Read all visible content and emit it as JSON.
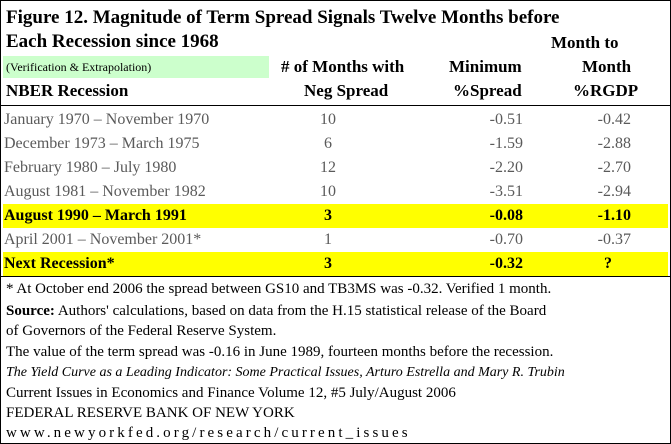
{
  "title": {
    "line1": "Figure 12.  Magnitude of Term Spread Signals Twelve Months before",
    "line2": "Each Recession since 1968"
  },
  "note": "(Verification & Extrapolation)",
  "headers": {
    "col0": "NBER Recession",
    "col1_line1": "# of Months with",
    "col1_line2": "Neg Spread",
    "col2_line1": "Minimum",
    "col2_line2": "%Spread",
    "col3_line0": "Month to",
    "col3_line1": "Month",
    "col3_line2": "%RGDP"
  },
  "rows": [
    {
      "recession": "January 1970 – November 1970",
      "months": "10",
      "spread": "-0.51",
      "rgdp": "-0.42",
      "highlight": false
    },
    {
      "recession": "December 1973 – March 1975",
      "months": "6",
      "spread": "-1.59",
      "rgdp": "-2.88",
      "highlight": false
    },
    {
      "recession": "February 1980 – July 1980",
      "months": "12",
      "spread": "-2.20",
      "rgdp": "-2.70",
      "highlight": false
    },
    {
      "recession": "August 1981 – November 1982",
      "months": "10",
      "spread": "-3.51",
      "rgdp": "-2.94",
      "highlight": false
    },
    {
      "recession": "August 1990 – March 1991",
      "months": "3",
      "spread": "-0.08",
      "rgdp": "-1.10",
      "highlight": true
    },
    {
      "recession": "April 2001 – November 2001*",
      "months": "1",
      "spread": "-0.70",
      "rgdp": "-0.37",
      "highlight": false
    },
    {
      "recession": "Next Recession*",
      "months": "3",
      "spread": "-0.32",
      "rgdp": "?",
      "highlight": true
    }
  ],
  "footnotes": {
    "star": " * At October end 2006 the spread between GS10 and TB3MS was -0.32.  Verified 1 month.",
    "source_label": "Source:",
    "source_line1": "  Authors' calculations, based on data from the H.15 statistical release of the Board",
    "source_line2": "of  Governors of the Federal Reserve System.",
    "term_spread": "The value of the term spread was -0.16 in June 1989, fourteen months before the recession.",
    "article": "The Yield Curve as a Leading Indicator: Some Practical Issues, Arturo Estrella and Mary R. Trubin",
    "journal": "Current Issues in Economics and Finance Volume 12, #5 July/August 2006",
    "bank": "FEDERAL RESERVE BANK OF NEW YORK",
    "url": "www.newyorkfed.org/research/current_issues"
  }
}
